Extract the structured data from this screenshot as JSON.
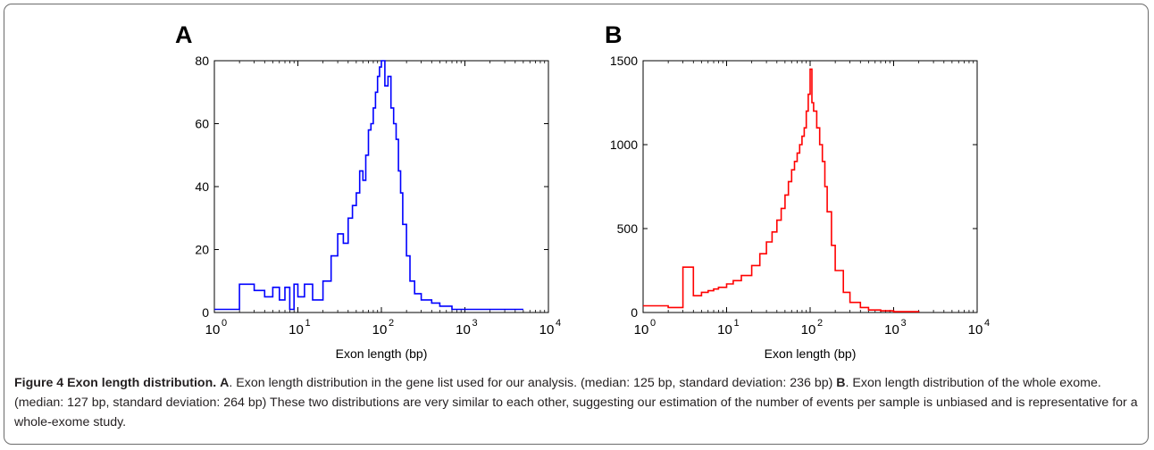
{
  "panels": [
    {
      "label": "A"
    },
    {
      "label": "B"
    }
  ],
  "caption": {
    "figure_label": "Figure 4 Exon length distribution.",
    "part_a_label": "A",
    "part_a_text": ". Exon length distribution in the gene list used for our analysis. (median: 125 bp, standard deviation: 236 bp)",
    "part_b_label": "B",
    "part_b_text": ". Exon length distribution of the whole exome. (median: 127 bp, standard deviation: 264 bp) These two distributions are very similar to each other, suggesting our estimation of the number of events per sample is unbiased and is representative for a whole-exome study."
  },
  "chart_data": [
    {
      "type": "line",
      "panel": "A",
      "title": "",
      "xlabel": "Exon length (bp)",
      "ylabel": "",
      "x_scale": "log",
      "xlim": [
        1,
        10000
      ],
      "ylim": [
        0,
        80
      ],
      "x_ticks": [
        1,
        10,
        100,
        1000,
        10000
      ],
      "y_ticks": [
        0,
        20,
        40,
        60,
        80
      ],
      "color": "#0000ff",
      "grid": false,
      "series": [
        {
          "x": [
            1,
            2,
            3,
            4,
            5,
            6,
            7,
            8,
            9,
            10,
            12,
            15,
            20,
            25,
            30,
            35,
            40,
            45,
            50,
            55,
            60,
            65,
            70,
            75,
            80,
            85,
            90,
            95,
            100,
            110,
            120,
            130,
            140,
            150,
            160,
            170,
            180,
            200,
            220,
            250,
            300,
            400,
            500,
            700,
            1000,
            2000,
            5000
          ],
          "y": [
            1,
            9,
            7,
            5,
            8,
            4,
            8,
            1,
            9,
            5,
            9,
            4,
            10,
            18,
            25,
            22,
            30,
            34,
            38,
            45,
            42,
            50,
            58,
            60,
            65,
            70,
            75,
            78,
            80,
            72,
            75,
            65,
            60,
            55,
            45,
            38,
            28,
            18,
            10,
            6,
            4,
            3,
            2,
            1,
            1,
            1,
            1
          ]
        }
      ]
    },
    {
      "type": "line",
      "panel": "B",
      "title": "",
      "xlabel": "Exon length (bp)",
      "ylabel": "",
      "x_scale": "log",
      "xlim": [
        1,
        10000
      ],
      "ylim": [
        0,
        1500
      ],
      "x_ticks": [
        1,
        10,
        100,
        1000,
        10000
      ],
      "y_ticks": [
        0,
        500,
        1000,
        1500
      ],
      "color": "#ff0000",
      "grid": false,
      "series": [
        {
          "x": [
            1,
            2,
            3,
            4,
            5,
            6,
            7,
            8,
            10,
            12,
            15,
            20,
            25,
            30,
            35,
            40,
            45,
            50,
            55,
            60,
            65,
            70,
            75,
            80,
            85,
            90,
            95,
            100,
            105,
            110,
            120,
            130,
            140,
            150,
            160,
            180,
            200,
            250,
            300,
            400,
            500,
            700,
            1000,
            2000
          ],
          "y": [
            40,
            30,
            270,
            100,
            120,
            130,
            140,
            150,
            170,
            190,
            220,
            280,
            350,
            420,
            480,
            550,
            620,
            700,
            780,
            850,
            900,
            950,
            1000,
            1050,
            1100,
            1200,
            1300,
            1450,
            1250,
            1200,
            1100,
            1000,
            900,
            750,
            600,
            400,
            250,
            120,
            60,
            30,
            15,
            10,
            5,
            2
          ]
        }
      ]
    }
  ]
}
